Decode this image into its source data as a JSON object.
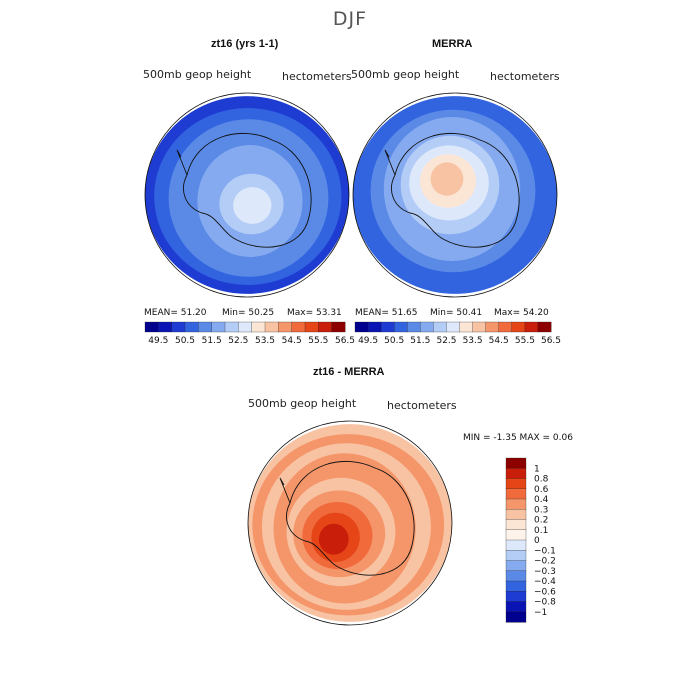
{
  "figure_title": "DJF",
  "chart_data": [
    {
      "type": "polar_contour_map",
      "title": "zt16 (yrs 1-1)",
      "subtitle_left": "500mb geop height",
      "subtitle_right": "hectometers",
      "stats_text": {
        "mean": "MEAN=   51.20",
        "min": "Min=   50.25",
        "max": "Max=   53.31"
      },
      "stats": {
        "mean": 51.2,
        "min": 50.25,
        "max": 53.31
      },
      "colorbar_levels": [
        49.5,
        50.0,
        50.5,
        51.0,
        51.5,
        52.0,
        52.5,
        53.0,
        53.5,
        54.0,
        54.5,
        55.0,
        55.5,
        56.0,
        56.5
      ],
      "colorbar_labels": [
        "49.5",
        "50.5",
        "51.5",
        "52.5",
        "53.5",
        "54.5",
        "55.5",
        "56.5"
      ],
      "colorbar_colors": [
        "#00008f",
        "#0a14b4",
        "#1e3cd2",
        "#3264e0",
        "#5a8ae6",
        "#85aaf0",
        "#b4cdf7",
        "#dde9fb",
        "#fbe6d6",
        "#f8c3a3",
        "#f5966a",
        "#f06a3c",
        "#e64617",
        "#c81e0a",
        "#8c0000"
      ],
      "field_rings": [
        2,
        3,
        4,
        4,
        5,
        5,
        6,
        7
      ]
    },
    {
      "type": "polar_contour_map",
      "title": "MERRA",
      "subtitle_left": "500mb geop height",
      "subtitle_right": "hectometers",
      "stats_text": {
        "mean": "MEAN=   51.65",
        "min": "Min=   50.41",
        "max": "Max=   54.20"
      },
      "stats": {
        "mean": 51.65,
        "min": 50.41,
        "max": 54.2
      },
      "colorbar_levels": [
        49.5,
        50.0,
        50.5,
        51.0,
        51.5,
        52.0,
        52.5,
        53.0,
        53.5,
        54.0,
        54.5,
        55.0,
        55.5,
        56.0,
        56.5
      ],
      "colorbar_labels": [
        "49.5",
        "50.5",
        "51.5",
        "52.5",
        "53.5",
        "54.5",
        "55.5",
        "56.5"
      ],
      "colorbar_colors": [
        "#00008f",
        "#0a14b4",
        "#1e3cd2",
        "#3264e0",
        "#5a8ae6",
        "#85aaf0",
        "#b4cdf7",
        "#dde9fb",
        "#fbe6d6",
        "#f8c3a3",
        "#f5966a",
        "#f06a3c",
        "#e64617",
        "#c81e0a",
        "#8c0000"
      ],
      "field_rings": [
        3,
        3,
        4,
        5,
        5,
        6,
        7,
        8,
        9
      ]
    },
    {
      "type": "polar_contour_map_difference",
      "title": "zt16 - MERRA",
      "subtitle_left": "500mb geop height",
      "subtitle_right": "hectometers",
      "stats_text": "MIN =   -1.35 MAX =    0.06",
      "stats": {
        "min": -1.35,
        "max": 0.06
      },
      "colorbar_labels": [
        "1",
        "0.8",
        "0.6",
        "0.4",
        "0.3",
        "0.2",
        "0.1",
        "0",
        "−0.1",
        "−0.2",
        "−0.3",
        "−0.4",
        "−0.6",
        "−0.8",
        "−1"
      ],
      "colorbar_colors": [
        "#8c0000",
        "#c81e0a",
        "#e64617",
        "#f06a3c",
        "#f5966a",
        "#f8c3a3",
        "#fbe6d6",
        "#fdf3ea",
        "#dde9fb",
        "#b4cdf7",
        "#85aaf0",
        "#5a8ae6",
        "#3264e0",
        "#1e3cd2",
        "#0a14b4",
        "#00008f"
      ],
      "field_rings": [
        5,
        4,
        5,
        4,
        4,
        5,
        4,
        3,
        2,
        1
      ]
    }
  ],
  "map_colors": {
    "outline": "#111111",
    "coast": "#111111"
  }
}
